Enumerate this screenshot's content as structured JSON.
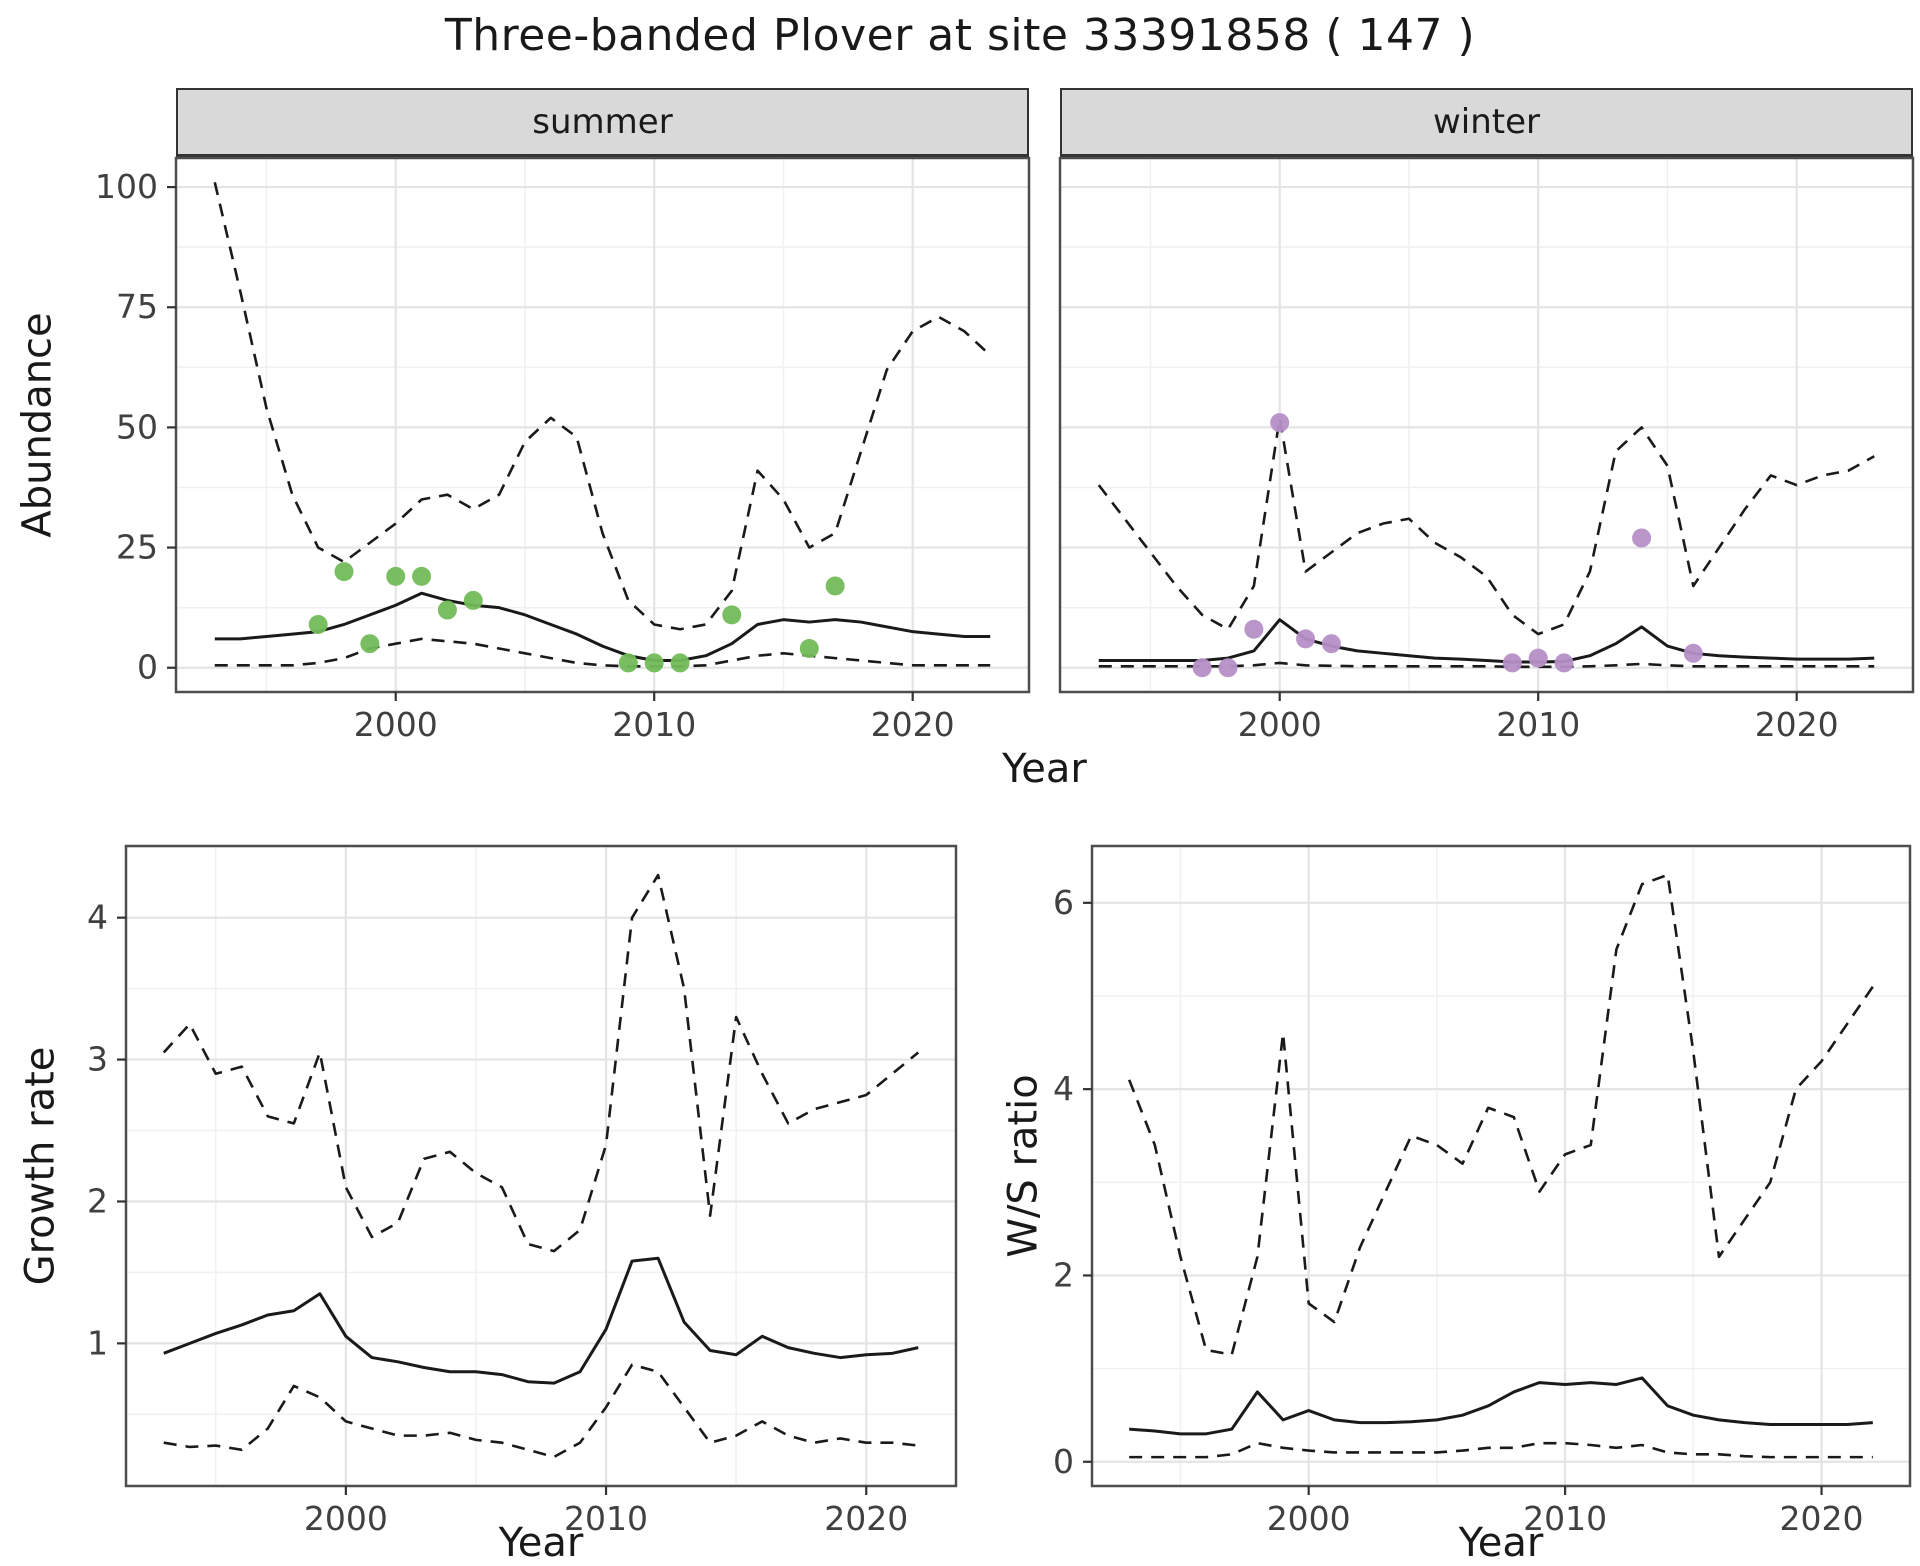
{
  "title": "Three-banded Plover at site 33391858 ( 147 )",
  "style": {
    "line": "#1a1a1a",
    "grid_major": "#e4e4e4",
    "grid_minor": "#f1f1f1",
    "panel_border": "#4d4d4d",
    "tick_color": "#333333",
    "strip_bg": "#d9d9d9",
    "summer_point_color": "#72bb57",
    "winter_point_color": "#b58fc7"
  },
  "chart_data": [
    {
      "type": "line",
      "facet": "summer",
      "ylabel": "Abundance",
      "xlabel": "Year",
      "x": [
        1993,
        1994,
        1995,
        1996,
        1997,
        1998,
        1999,
        2000,
        2001,
        2002,
        2003,
        2004,
        2005,
        2006,
        2007,
        2008,
        2009,
        2010,
        2011,
        2012,
        2013,
        2014,
        2015,
        2016,
        2017,
        2018,
        2019,
        2020,
        2021,
        2022,
        2023
      ],
      "series": [
        {
          "name": "upper_95ci",
          "style": "dashed",
          "values": [
            101,
            78,
            54,
            36,
            25,
            22,
            26,
            30,
            35,
            36,
            33,
            36,
            47,
            52,
            48,
            28,
            14,
            9,
            8,
            9,
            16,
            41,
            35,
            25,
            28,
            45,
            62,
            70,
            73,
            70,
            65
          ]
        },
        {
          "name": "median",
          "style": "solid",
          "values": [
            6,
            6,
            6.5,
            7,
            7.5,
            9,
            11,
            13,
            15.5,
            14,
            13,
            12.5,
            11,
            9,
            7,
            4.5,
            2.5,
            1.5,
            1.5,
            2.5,
            5,
            9,
            10,
            9.5,
            10,
            9.5,
            8.5,
            7.5,
            7,
            6.5,
            6.5
          ]
        },
        {
          "name": "lower_95ci",
          "style": "dashed",
          "values": [
            0.5,
            0.5,
            0.5,
            0.5,
            1,
            2,
            4,
            5,
            6,
            5.5,
            5,
            4,
            3,
            2,
            1,
            0.5,
            0.3,
            0.3,
            0.3,
            0.5,
            1.5,
            2.5,
            3,
            2.5,
            2,
            1.5,
            1,
            0.5,
            0.5,
            0.5,
            0.5
          ]
        }
      ],
      "points": {
        "name": "observed-summer-counts",
        "color": "#72bb57",
        "xy": [
          [
            1997,
            9
          ],
          [
            1998,
            20
          ],
          [
            1999,
            5
          ],
          [
            2000,
            19
          ],
          [
            2001,
            19
          ],
          [
            2002,
            12
          ],
          [
            2003,
            14
          ],
          [
            2009,
            1
          ],
          [
            2010,
            1
          ],
          [
            2011,
            1
          ],
          [
            2013,
            11
          ],
          [
            2016,
            4
          ],
          [
            2017,
            17
          ]
        ]
      },
      "xlim": [
        1991.5,
        2024.5
      ],
      "ylim": [
        -5.05,
        106.05
      ],
      "xticks": [
        2000,
        2010,
        2020
      ],
      "yticks": [
        0,
        25,
        50,
        75,
        100
      ],
      "ytick_labels": true,
      "grid": true
    },
    {
      "type": "line",
      "facet": "winter",
      "ylabel": "Abundance",
      "xlabel": "Year",
      "x": [
        1993,
        1994,
        1995,
        1996,
        1997,
        1998,
        1999,
        2000,
        2001,
        2002,
        2003,
        2004,
        2005,
        2006,
        2007,
        2008,
        2009,
        2010,
        2011,
        2012,
        2013,
        2014,
        2015,
        2016,
        2017,
        2018,
        2019,
        2020,
        2021,
        2022,
        2023
      ],
      "series": [
        {
          "name": "upper_95ci",
          "style": "dashed",
          "values": [
            38,
            31,
            24,
            17,
            11,
            8,
            17,
            52,
            20,
            24,
            28,
            30,
            31,
            26,
            23,
            19,
            11,
            7,
            9,
            20,
            45,
            50,
            42,
            17,
            25,
            33,
            40,
            38,
            40,
            41,
            44
          ]
        },
        {
          "name": "median",
          "style": "solid",
          "values": [
            1.5,
            1.5,
            1.5,
            1.5,
            1.5,
            2,
            3.5,
            10,
            6,
            4.5,
            3.5,
            3,
            2.5,
            2,
            1.8,
            1.5,
            1.2,
            1.2,
            1.3,
            2.5,
            5,
            8.5,
            4.5,
            3,
            2.5,
            2.2,
            2,
            1.8,
            1.8,
            1.8,
            2
          ]
        },
        {
          "name": "lower_95ci",
          "style": "dashed",
          "values": [
            0.3,
            0.3,
            0.3,
            0.3,
            0.3,
            0.3,
            0.5,
            1,
            0.5,
            0.4,
            0.3,
            0.3,
            0.3,
            0.3,
            0.3,
            0.3,
            0.2,
            0.2,
            0.2,
            0.3,
            0.5,
            0.8,
            0.5,
            0.3,
            0.3,
            0.3,
            0.3,
            0.3,
            0.3,
            0.3,
            0.3
          ]
        }
      ],
      "points": {
        "name": "observed-winter-counts",
        "color": "#b58fc7",
        "xy": [
          [
            1997,
            0
          ],
          [
            1998,
            0
          ],
          [
            1999,
            8
          ],
          [
            2000,
            51
          ],
          [
            2001,
            6
          ],
          [
            2002,
            5
          ],
          [
            2009,
            1
          ],
          [
            2010,
            2
          ],
          [
            2011,
            1
          ],
          [
            2014,
            27
          ],
          [
            2016,
            3
          ]
        ]
      },
      "xlim": [
        1991.5,
        2024.5
      ],
      "ylim": [
        -5.05,
        106.05
      ],
      "xticks": [
        2000,
        2010,
        2020
      ],
      "yticks": [
        0,
        25,
        50,
        75,
        100
      ],
      "ytick_labels": false,
      "grid": true
    },
    {
      "type": "line",
      "facet": "",
      "ylabel": "Growth rate",
      "xlabel": "Year",
      "x": [
        1993,
        1994,
        1995,
        1996,
        1997,
        1998,
        1999,
        2000,
        2001,
        2002,
        2003,
        2004,
        2005,
        2006,
        2007,
        2008,
        2009,
        2010,
        2011,
        2012,
        2013,
        2014,
        2015,
        2016,
        2017,
        2018,
        2019,
        2020,
        2021,
        2022
      ],
      "series": [
        {
          "name": "upper_95ci",
          "style": "dashed",
          "values": [
            3.05,
            3.25,
            2.9,
            2.95,
            2.6,
            2.55,
            3.05,
            2.1,
            1.75,
            1.85,
            2.3,
            2.35,
            2.2,
            2.1,
            1.7,
            1.65,
            1.8,
            2.4,
            4.0,
            4.3,
            3.5,
            1.9,
            3.3,
            2.9,
            2.55,
            2.65,
            2.7,
            2.75,
            2.9,
            3.05
          ]
        },
        {
          "name": "median",
          "style": "solid",
          "values": [
            0.93,
            1.0,
            1.07,
            1.13,
            1.2,
            1.23,
            1.35,
            1.05,
            0.9,
            0.87,
            0.83,
            0.8,
            0.8,
            0.78,
            0.73,
            0.72,
            0.8,
            1.1,
            1.58,
            1.6,
            1.15,
            0.95,
            0.92,
            1.05,
            0.97,
            0.93,
            0.9,
            0.92,
            0.93,
            0.97
          ]
        },
        {
          "name": "lower_95ci",
          "style": "dashed",
          "values": [
            0.3,
            0.27,
            0.28,
            0.25,
            0.4,
            0.7,
            0.62,
            0.45,
            0.4,
            0.35,
            0.35,
            0.37,
            0.32,
            0.3,
            0.25,
            0.2,
            0.3,
            0.55,
            0.85,
            0.8,
            0.55,
            0.3,
            0.35,
            0.45,
            0.35,
            0.3,
            0.33,
            0.3,
            0.3,
            0.28
          ]
        }
      ],
      "points": null,
      "xlim": [
        1991.55,
        2023.45
      ],
      "ylim": [
        -0.005,
        4.505
      ],
      "xticks": [
        2000,
        2010,
        2020
      ],
      "yticks": [
        1,
        2,
        3,
        4
      ],
      "ytick_labels": true,
      "grid": true
    },
    {
      "type": "line",
      "facet": "",
      "ylabel": "W/S ratio",
      "xlabel": "Year",
      "x": [
        1993,
        1994,
        1995,
        1996,
        1997,
        1998,
        1999,
        2000,
        2001,
        2002,
        2003,
        2004,
        2005,
        2006,
        2007,
        2008,
        2009,
        2010,
        2011,
        2012,
        2013,
        2014,
        2015,
        2016,
        2017,
        2018,
        2019,
        2020,
        2021,
        2022
      ],
      "series": [
        {
          "name": "upper_95ci",
          "style": "dashed",
          "values": [
            4.1,
            3.4,
            2.2,
            1.2,
            1.15,
            2.2,
            4.6,
            1.7,
            1.5,
            2.3,
            2.9,
            3.5,
            3.4,
            3.2,
            3.8,
            3.7,
            2.9,
            3.3,
            3.4,
            5.5,
            6.2,
            6.3,
            4.4,
            2.2,
            2.6,
            3.0,
            4.0,
            4.3,
            4.7,
            5.1
          ]
        },
        {
          "name": "median",
          "style": "solid",
          "values": [
            0.35,
            0.33,
            0.3,
            0.3,
            0.35,
            0.75,
            0.45,
            0.55,
            0.45,
            0.42,
            0.42,
            0.43,
            0.45,
            0.5,
            0.6,
            0.75,
            0.85,
            0.83,
            0.85,
            0.83,
            0.9,
            0.6,
            0.5,
            0.45,
            0.42,
            0.4,
            0.4,
            0.4,
            0.4,
            0.42
          ]
        },
        {
          "name": "lower_95ci",
          "style": "dashed",
          "values": [
            0.05,
            0.05,
            0.05,
            0.05,
            0.08,
            0.2,
            0.15,
            0.12,
            0.1,
            0.1,
            0.1,
            0.1,
            0.1,
            0.12,
            0.15,
            0.15,
            0.2,
            0.2,
            0.18,
            0.15,
            0.18,
            0.1,
            0.08,
            0.08,
            0.06,
            0.05,
            0.05,
            0.05,
            0.05,
            0.05
          ]
        }
      ],
      "points": null,
      "xlim": [
        1991.55,
        2023.45
      ],
      "ylim": [
        -0.26,
        6.61
      ],
      "xticks": [
        2000,
        2010,
        2020
      ],
      "yticks": [
        0,
        2,
        4,
        6
      ],
      "ytick_labels": true,
      "grid": true
    }
  ]
}
